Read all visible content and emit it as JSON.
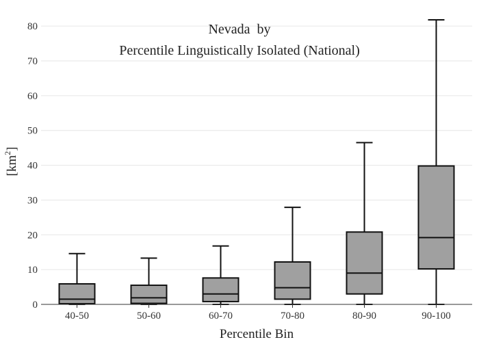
{
  "chart_data": {
    "type": "box",
    "title_line1": "Nevada  by",
    "title_line2": "Percentile Linguistically Isolated (National)",
    "xlabel": "Percentile Bin",
    "ylabel_base": "[km",
    "ylabel_sup": "2",
    "ylabel_close": "]",
    "ylim": [
      0,
      82
    ],
    "yticks": [
      0,
      10,
      20,
      30,
      40,
      50,
      60,
      70,
      80
    ],
    "ytick_labels": [
      "0",
      "10",
      "20",
      "30",
      "40",
      "50",
      "60",
      "70",
      "80"
    ],
    "grid": true,
    "box_color": "#a0a0a0",
    "categories": [
      "40-50",
      "50-60",
      "60-70",
      "70-80",
      "80-90",
      "90-100"
    ],
    "boxes": [
      {
        "min": 0.0,
        "q1": 0.2,
        "median": 1.5,
        "q3": 5.9,
        "max": 14.6
      },
      {
        "min": 0.0,
        "q1": 0.3,
        "median": 1.9,
        "q3": 5.5,
        "max": 13.3
      },
      {
        "min": 0.0,
        "q1": 0.8,
        "median": 3.0,
        "q3": 7.6,
        "max": 16.8
      },
      {
        "min": 0.0,
        "q1": 1.5,
        "median": 4.8,
        "q3": 12.2,
        "max": 27.9
      },
      {
        "min": 0.0,
        "q1": 3.0,
        "median": 9.0,
        "q3": 20.8,
        "max": 46.5
      },
      {
        "min": 0.0,
        "q1": 10.2,
        "median": 19.2,
        "q3": 39.8,
        "max": 81.8
      }
    ]
  }
}
